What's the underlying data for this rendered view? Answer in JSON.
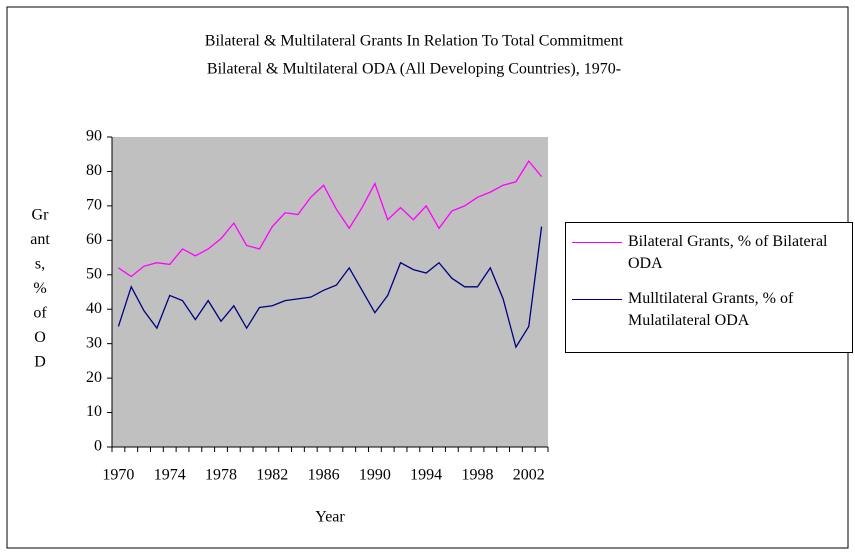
{
  "chart_data": {
    "type": "line",
    "title": "Bilateral & Multilateral Grants In Relation To Total Commitment",
    "subtitle": "Bilateral & Multilateral ODA (All Developing Countries), 1970-",
    "x_label": "Year",
    "y_label_lines": [
      "Gr",
      "ant",
      "s,",
      "%",
      "of",
      "O",
      "D"
    ],
    "categories": [
      "1970",
      null,
      null,
      null,
      "1974",
      null,
      null,
      null,
      "1978",
      null,
      null,
      null,
      "1982",
      null,
      null,
      null,
      "1986",
      null,
      null,
      null,
      "1990",
      null,
      null,
      null,
      "1994",
      null,
      null,
      null,
      "1998",
      null,
      null,
      null,
      "2002",
      null
    ],
    "series": [
      {
        "name": "Bilateral Grants, % of Bilateral ODA",
        "color": "#ff00ff",
        "values": [
          52,
          49.5,
          52.5,
          53.5,
          53,
          57.5,
          55.5,
          57.5,
          60.5,
          65,
          58.5,
          57.5,
          64,
          68,
          67.5,
          72.5,
          76,
          69,
          63.5,
          69.5,
          76.5,
          66,
          69.5,
          66,
          70,
          63.5,
          68.5,
          70,
          72.5,
          74,
          76,
          77,
          83,
          78.5
        ]
      },
      {
        "name": "Mulltilateral Grants, % of Mulatilateral ODA",
        "color": "#000080",
        "values": [
          35,
          46.5,
          39.5,
          34.5,
          44,
          42.5,
          37,
          42.5,
          36.5,
          41,
          34.5,
          40.5,
          41,
          42.5,
          43,
          43.5,
          45.5,
          47,
          52,
          45.5,
          39,
          44,
          53.5,
          51.5,
          50.5,
          53.5,
          49,
          46.5,
          46.5,
          52,
          43,
          29,
          35,
          64
        ]
      }
    ],
    "ylim": [
      0,
      90
    ],
    "yticks": [
      0,
      10,
      20,
      30,
      40,
      50,
      60,
      70,
      80,
      90
    ],
    "plot_background": "#c0c0c0",
    "legend": "right"
  }
}
